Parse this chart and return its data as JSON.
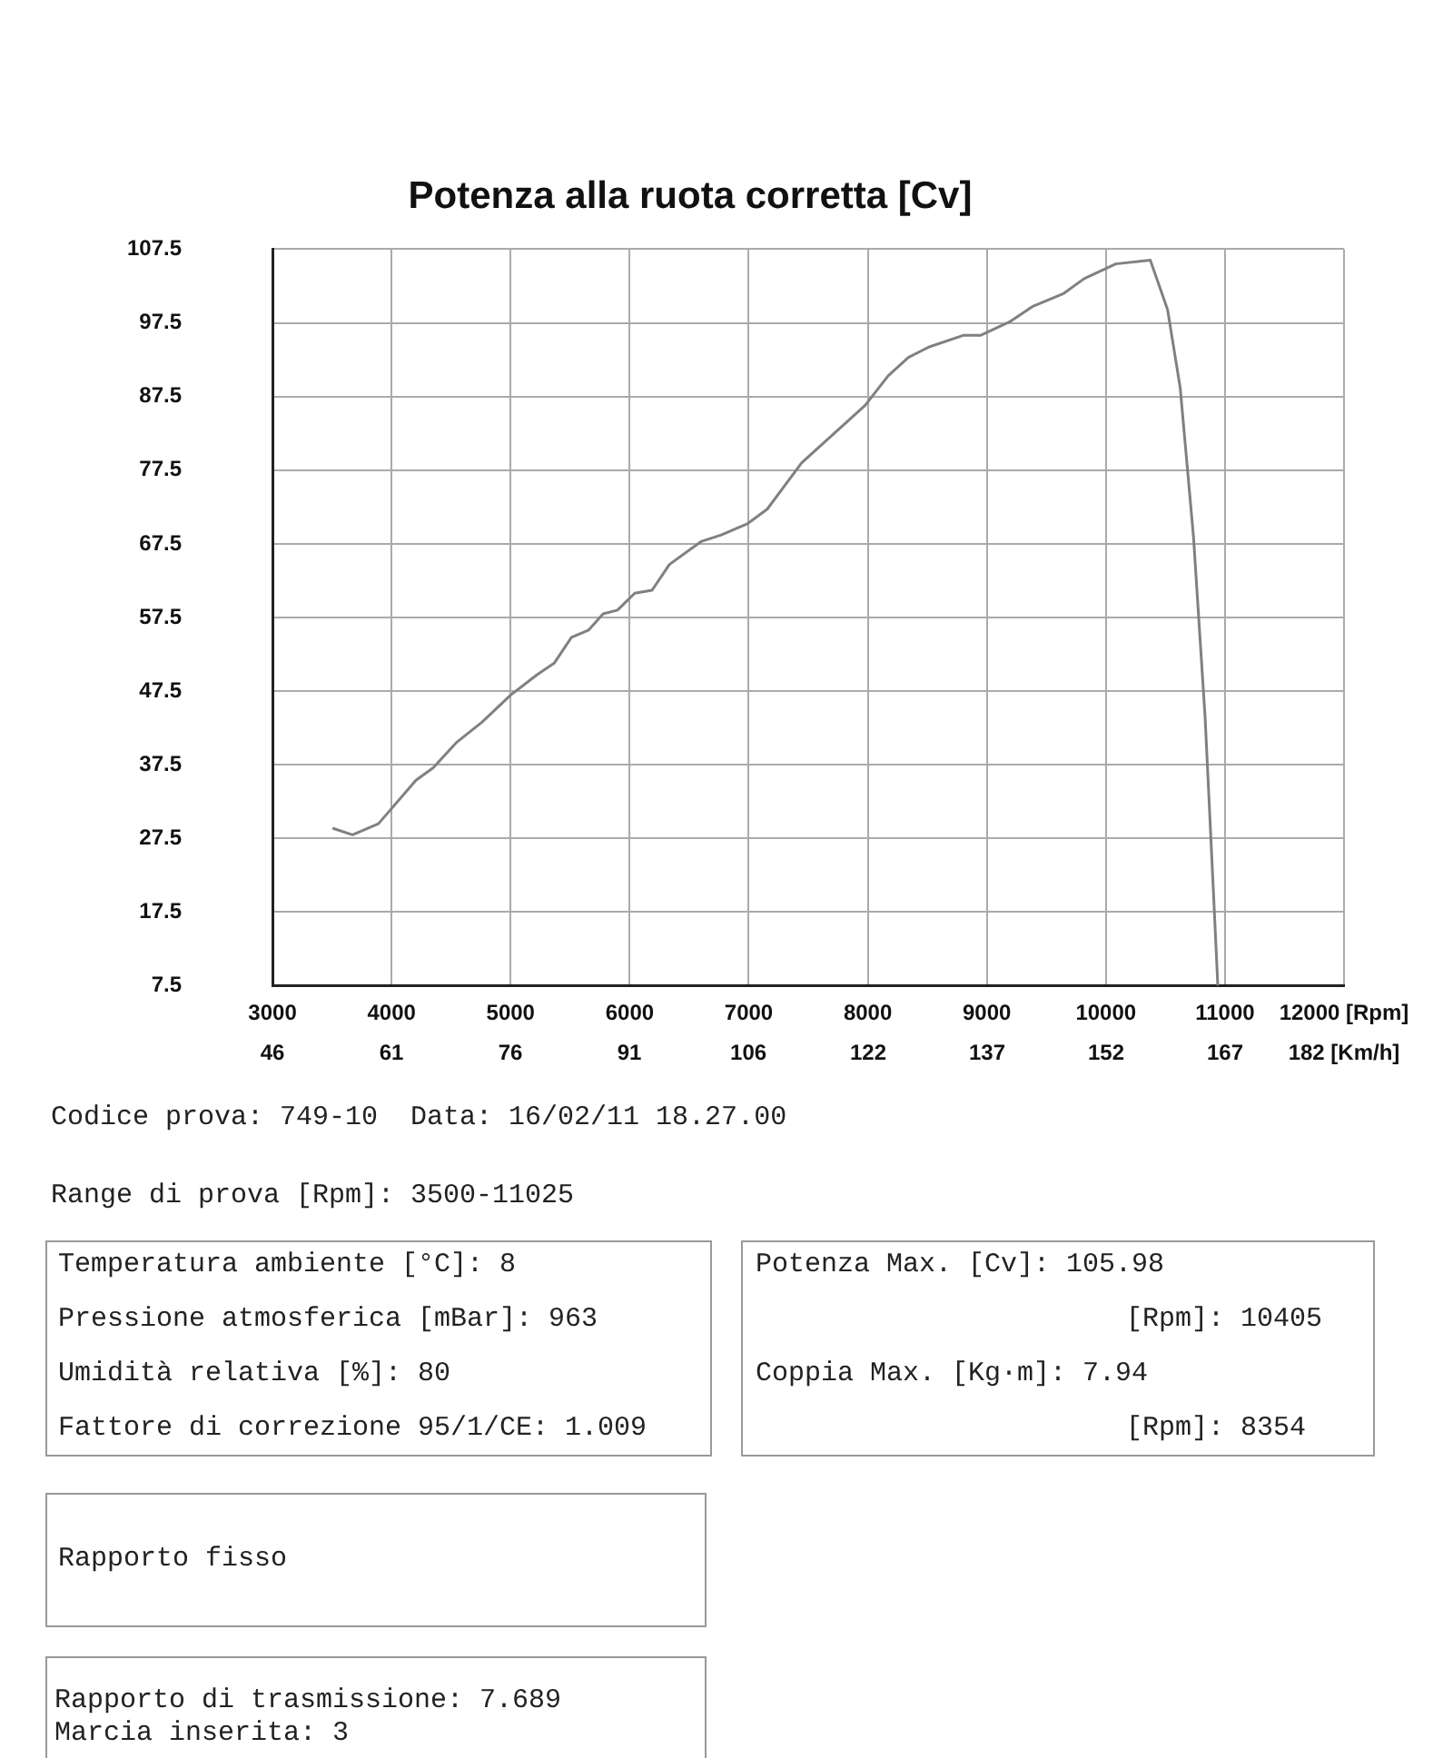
{
  "chart_data": {
    "type": "line",
    "title": "Potenza alla ruota corretta [Cv]",
    "series": [
      {
        "color": "#808080",
        "x": [
          3504,
          3672,
          3890,
          4205,
          4350,
          4543,
          4761,
          5003,
          5220,
          5366,
          5511,
          5656,
          5777,
          5898,
          6043,
          6188,
          6334,
          6599,
          6769,
          6987,
          7155,
          7445,
          7978,
          8171,
          8341,
          8511,
          8801,
          8946,
          9188,
          9382,
          9647,
          9817,
          10083,
          10373,
          10518,
          10624,
          10736,
          10833,
          10905,
          10940
        ],
        "values": [
          28.9,
          28.0,
          29.5,
          35.4,
          37.1,
          40.5,
          43.3,
          47.0,
          49.7,
          51.3,
          54.8,
          55.8,
          58.0,
          58.5,
          60.8,
          61.2,
          64.7,
          67.8,
          68.7,
          70.2,
          72.2,
          78.5,
          86.3,
          90.3,
          92.8,
          94.2,
          95.8,
          95.8,
          97.6,
          99.7,
          101.5,
          103.5,
          105.5,
          106.0,
          99.3,
          88.7,
          68.4,
          44.0,
          19.6,
          7.5
        ]
      }
    ],
    "xlim": [
      3000,
      12000
    ],
    "xticks": [
      3000,
      4000,
      5000,
      6000,
      7000,
      8000,
      9000,
      10000,
      11000,
      {
        "value": 12000,
        "label": "12000 [Rpm]"
      }
    ],
    "x2lim": [
      46,
      182
    ],
    "x2ticks": [
      46,
      {
        "value": 61.1,
        "label": "61"
      },
      {
        "value": 76.2,
        "label": "76"
      },
      {
        "value": 91.3,
        "label": "91"
      },
      {
        "value": 106.4,
        "label": "106"
      },
      {
        "value": 121.6,
        "label": "122"
      },
      {
        "value": 136.7,
        "label": "137"
      },
      {
        "value": 151.8,
        "label": "152"
      },
      {
        "value": 166.9,
        "label": "167"
      },
      {
        "value": 182,
        "label": "182 [Km/h]"
      }
    ],
    "ylim": [
      7.5,
      107.5
    ],
    "yticks": [
      7.5,
      17.5,
      27.5,
      37.5,
      47.5,
      57.5,
      67.5,
      77.5,
      87.5,
      97.5,
      107.5
    ],
    "grid": true,
    "legend": false,
    "marker": "none",
    "line_style": "solid",
    "annotations": [
      "Codice prova: 749-10  Data: 16/02/11 18.27.00",
      "Range di prova [Rpm]: 3500-11025",
      "Temperatura ambiente [°C]: 8",
      "Pressione atmosferica [mBar]: 963",
      "Umidità relativa [%]: 80",
      "Fattore di correzione 95/1/CE: 1.009",
      "Potenza Max. [Cv]: 105.98",
      "[Rpm]: 10405",
      "Coppia Max. [Kg·m]: 7.94",
      "[Rpm]: 8354",
      "Rapporto fisso",
      "Rapporto di trasmissione: 7.689",
      "Marcia inserita: 3"
    ]
  }
}
